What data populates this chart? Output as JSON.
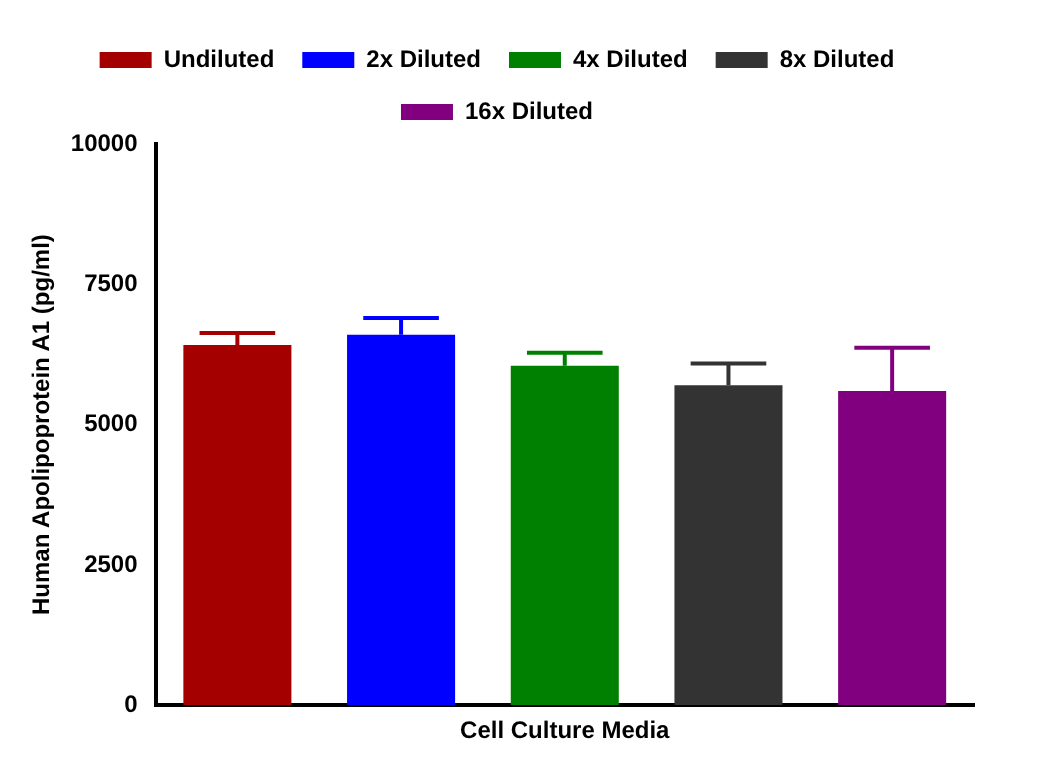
{
  "chart_data": {
    "type": "bar",
    "ylabel": "Human Apolipoprotein A1 (pg/ml)",
    "categories": [
      "Cell Culture Media"
    ],
    "series": [
      {
        "name": "Undiluted",
        "color": "#a50000",
        "values": [
          6420
        ],
        "errors": [
          [
            6420,
            6630
          ]
        ]
      },
      {
        "name": "2x Diluted",
        "color": "#0000ff",
        "values": [
          6600
        ],
        "errors": [
          [
            6600,
            6900
          ]
        ]
      },
      {
        "name": "4x Diluted",
        "color": "#008000",
        "values": [
          6050
        ],
        "errors": [
          [
            6050,
            6280
          ]
        ]
      },
      {
        "name": "8x Diluted",
        "color": "#333333",
        "values": [
          5700
        ],
        "errors": [
          [
            5700,
            6090
          ]
        ]
      },
      {
        "name": "16x Diluted",
        "color": "#800080",
        "values": [
          5600
        ],
        "errors": [
          [
            5600,
            6370
          ]
        ]
      }
    ],
    "ylim": [
      0,
      10000
    ],
    "yticks": [
      0,
      2500,
      5000,
      7500,
      10000
    ],
    "grid": false,
    "legend": "top"
  }
}
